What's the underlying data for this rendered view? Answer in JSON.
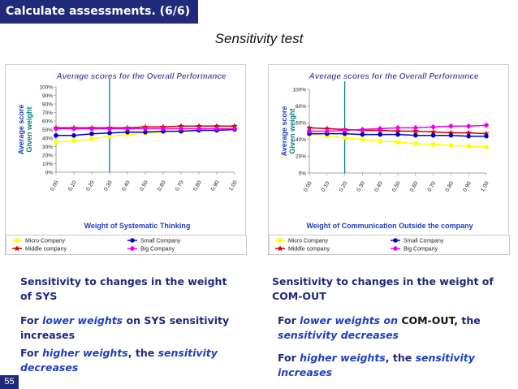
{
  "header": {
    "title": "Calculate assessments.  (6/6)"
  },
  "main_title": "Sensitivity test",
  "page_number": "55",
  "colors": {
    "header_bg": "#1f2a7a",
    "micro": "#ffff00",
    "middle": "#cc0000",
    "small": "#0000cc",
    "big": "#ee00ee",
    "marker_line": "#008080",
    "axis_label": "#1f3fbf",
    "given_weight": "#008080"
  },
  "chart_data": [
    {
      "type": "line",
      "title": "Average scores for the  Overall Performance",
      "xlabel": "Weight of Systematic Thinking",
      "ylabel": "Average score",
      "ylabel2": "Given weight",
      "categories": [
        "0.00",
        "0.10",
        "0.20",
        "0.30",
        "0.40",
        "0.50",
        "0.60",
        "0.70",
        "0.80",
        "0.90",
        "1.00"
      ],
      "y_ticks": [
        "0%",
        "10%",
        "20%",
        "30%",
        "40%",
        "50%",
        "60%",
        "70%",
        "80%",
        "90%",
        "100%"
      ],
      "ylim": [
        0,
        100
      ],
      "given_weight_x": 0.3,
      "series": [
        {
          "name": "Micro Company",
          "values": [
            35,
            37,
            39,
            42,
            44,
            46,
            47,
            49,
            50,
            51,
            52
          ]
        },
        {
          "name": "Middle company",
          "values": [
            52,
            52,
            52,
            52,
            52,
            53,
            53,
            54,
            54,
            54,
            54
          ]
        },
        {
          "name": "Small Company",
          "values": [
            43,
            43,
            45,
            46,
            47,
            47,
            48,
            48,
            49,
            49,
            50
          ]
        },
        {
          "name": "Big Company",
          "values": [
            51,
            51,
            51,
            51,
            51,
            51,
            51,
            51,
            51,
            51,
            51
          ]
        }
      ]
    },
    {
      "type": "line",
      "title": "Average scores for the Overall Performance",
      "xlabel": "Weight of Communication Outside the company",
      "ylabel": "Average score",
      "ylabel2": "Given weight",
      "categories": [
        "0.00",
        "0.10",
        "0.20",
        "0.30",
        "0.40",
        "0.50",
        "0.60",
        "0.70",
        "0.80",
        "0.90",
        "1.00"
      ],
      "y_ticks": [
        "0%",
        "20%",
        "40%",
        "60%",
        "80%",
        "100%"
      ],
      "ylim": [
        0,
        100
      ],
      "given_weight_x": 0.2,
      "series": [
        {
          "name": "Micro Company",
          "values": [
            46,
            44,
            42,
            40,
            38,
            37,
            35,
            34,
            33,
            32,
            31
          ]
        },
        {
          "name": "Middle company",
          "values": [
            54,
            53,
            52,
            51,
            51,
            50,
            50,
            49,
            48,
            48,
            47
          ]
        },
        {
          "name": "Small Company",
          "values": [
            47,
            47,
            47,
            46,
            46,
            46,
            45,
            45,
            45,
            44,
            44
          ]
        },
        {
          "name": "Big Company",
          "values": [
            50,
            50,
            51,
            52,
            53,
            54,
            54,
            55,
            56,
            56,
            57
          ]
        }
      ]
    }
  ],
  "captions": {
    "left": {
      "heading": "Sensitivity to changes in the weight of SYS",
      "line2_prefix": "For ",
      "line2_em": "lower weights",
      "line2_suffix": " on SYS sensitivity increases",
      "line3_prefix": "For ",
      "line3_em1": "higher weights",
      "line3_mid": ",  the ",
      "line3_em2": "sensitivity decreases"
    },
    "right": {
      "heading": "Sensitivity to changes in the weight of COM-OUT",
      "line2_prefix": "For ",
      "line2_em": "lower weights on",
      "line2_plain": " COM-OUT,",
      "line2_mid": "  the ",
      "line2_em2": "sensitivity decreases",
      "line3_prefix": "For ",
      "line3_em1": "higher weights",
      "line3_mid": ",  the ",
      "line3_em2": "sensitivity increases"
    }
  }
}
